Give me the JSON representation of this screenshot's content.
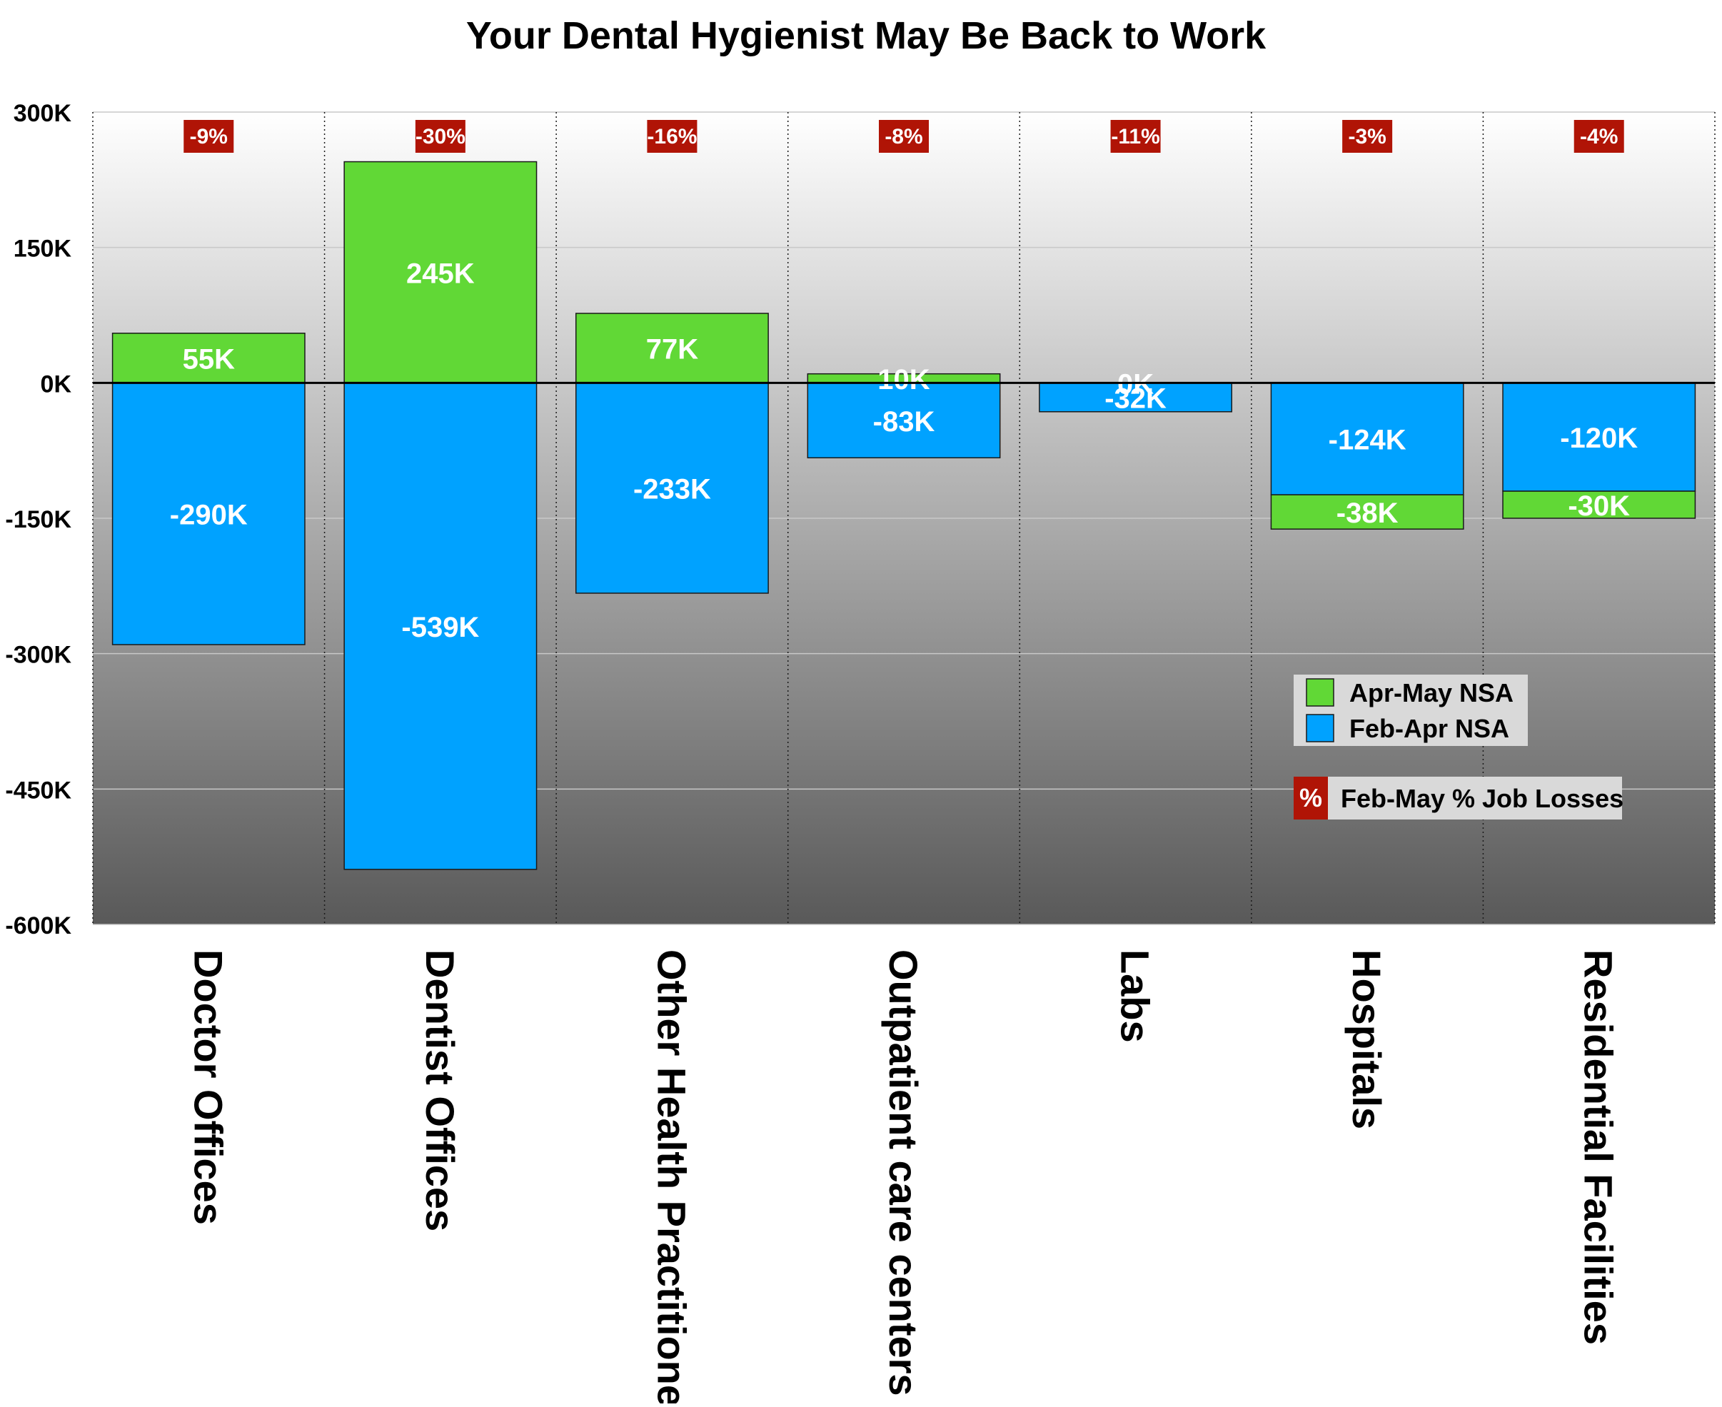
{
  "chart_data": {
    "type": "bar",
    "title": "Your Dental Hygienist May Be Back to Work",
    "xlabel": "",
    "ylabel": "",
    "ylim": [
      -600,
      300
    ],
    "y_ticks": [
      300,
      150,
      0,
      -150,
      -300,
      -450,
      -600
    ],
    "y_tick_labels": [
      "300K",
      "150K",
      "0K",
      "-150K",
      "-300K",
      "-450K",
      "-600K"
    ],
    "grid": true,
    "stacked": true,
    "categories": [
      "Doctor Offices",
      "Dentist Offices",
      "Other Health Practitioners",
      "Outpatient care centers",
      "Labs",
      "Hospitals",
      "Residential Facilities"
    ],
    "series": [
      {
        "name": "Feb-Apr NSA",
        "color": "#00a2ff",
        "values": [
          -290,
          -539,
          -233,
          -83,
          -32,
          -124,
          -120
        ],
        "labels": [
          "-290K",
          "-539K",
          "-233K",
          "-83K",
          "-32K",
          "-124K",
          "-120K"
        ]
      },
      {
        "name": "Apr-May NSA",
        "color": "#61d836",
        "values": [
          55,
          245,
          77,
          10,
          0,
          -38,
          -30
        ],
        "labels": [
          "55K",
          "245K",
          "77K",
          "10K",
          "0K",
          "-38K",
          "-30K"
        ]
      }
    ],
    "pct_series": {
      "name": "Feb-May % Job Losses",
      "symbol": "%",
      "color": "#b01406",
      "values": [
        -9,
        -30,
        -16,
        -8,
        -11,
        -3,
        -4
      ],
      "labels": [
        "-9%",
        "-30%",
        "-16%",
        "-8%",
        "-11%",
        "-3%",
        "-4%"
      ]
    },
    "legend_position": "lower-right"
  }
}
